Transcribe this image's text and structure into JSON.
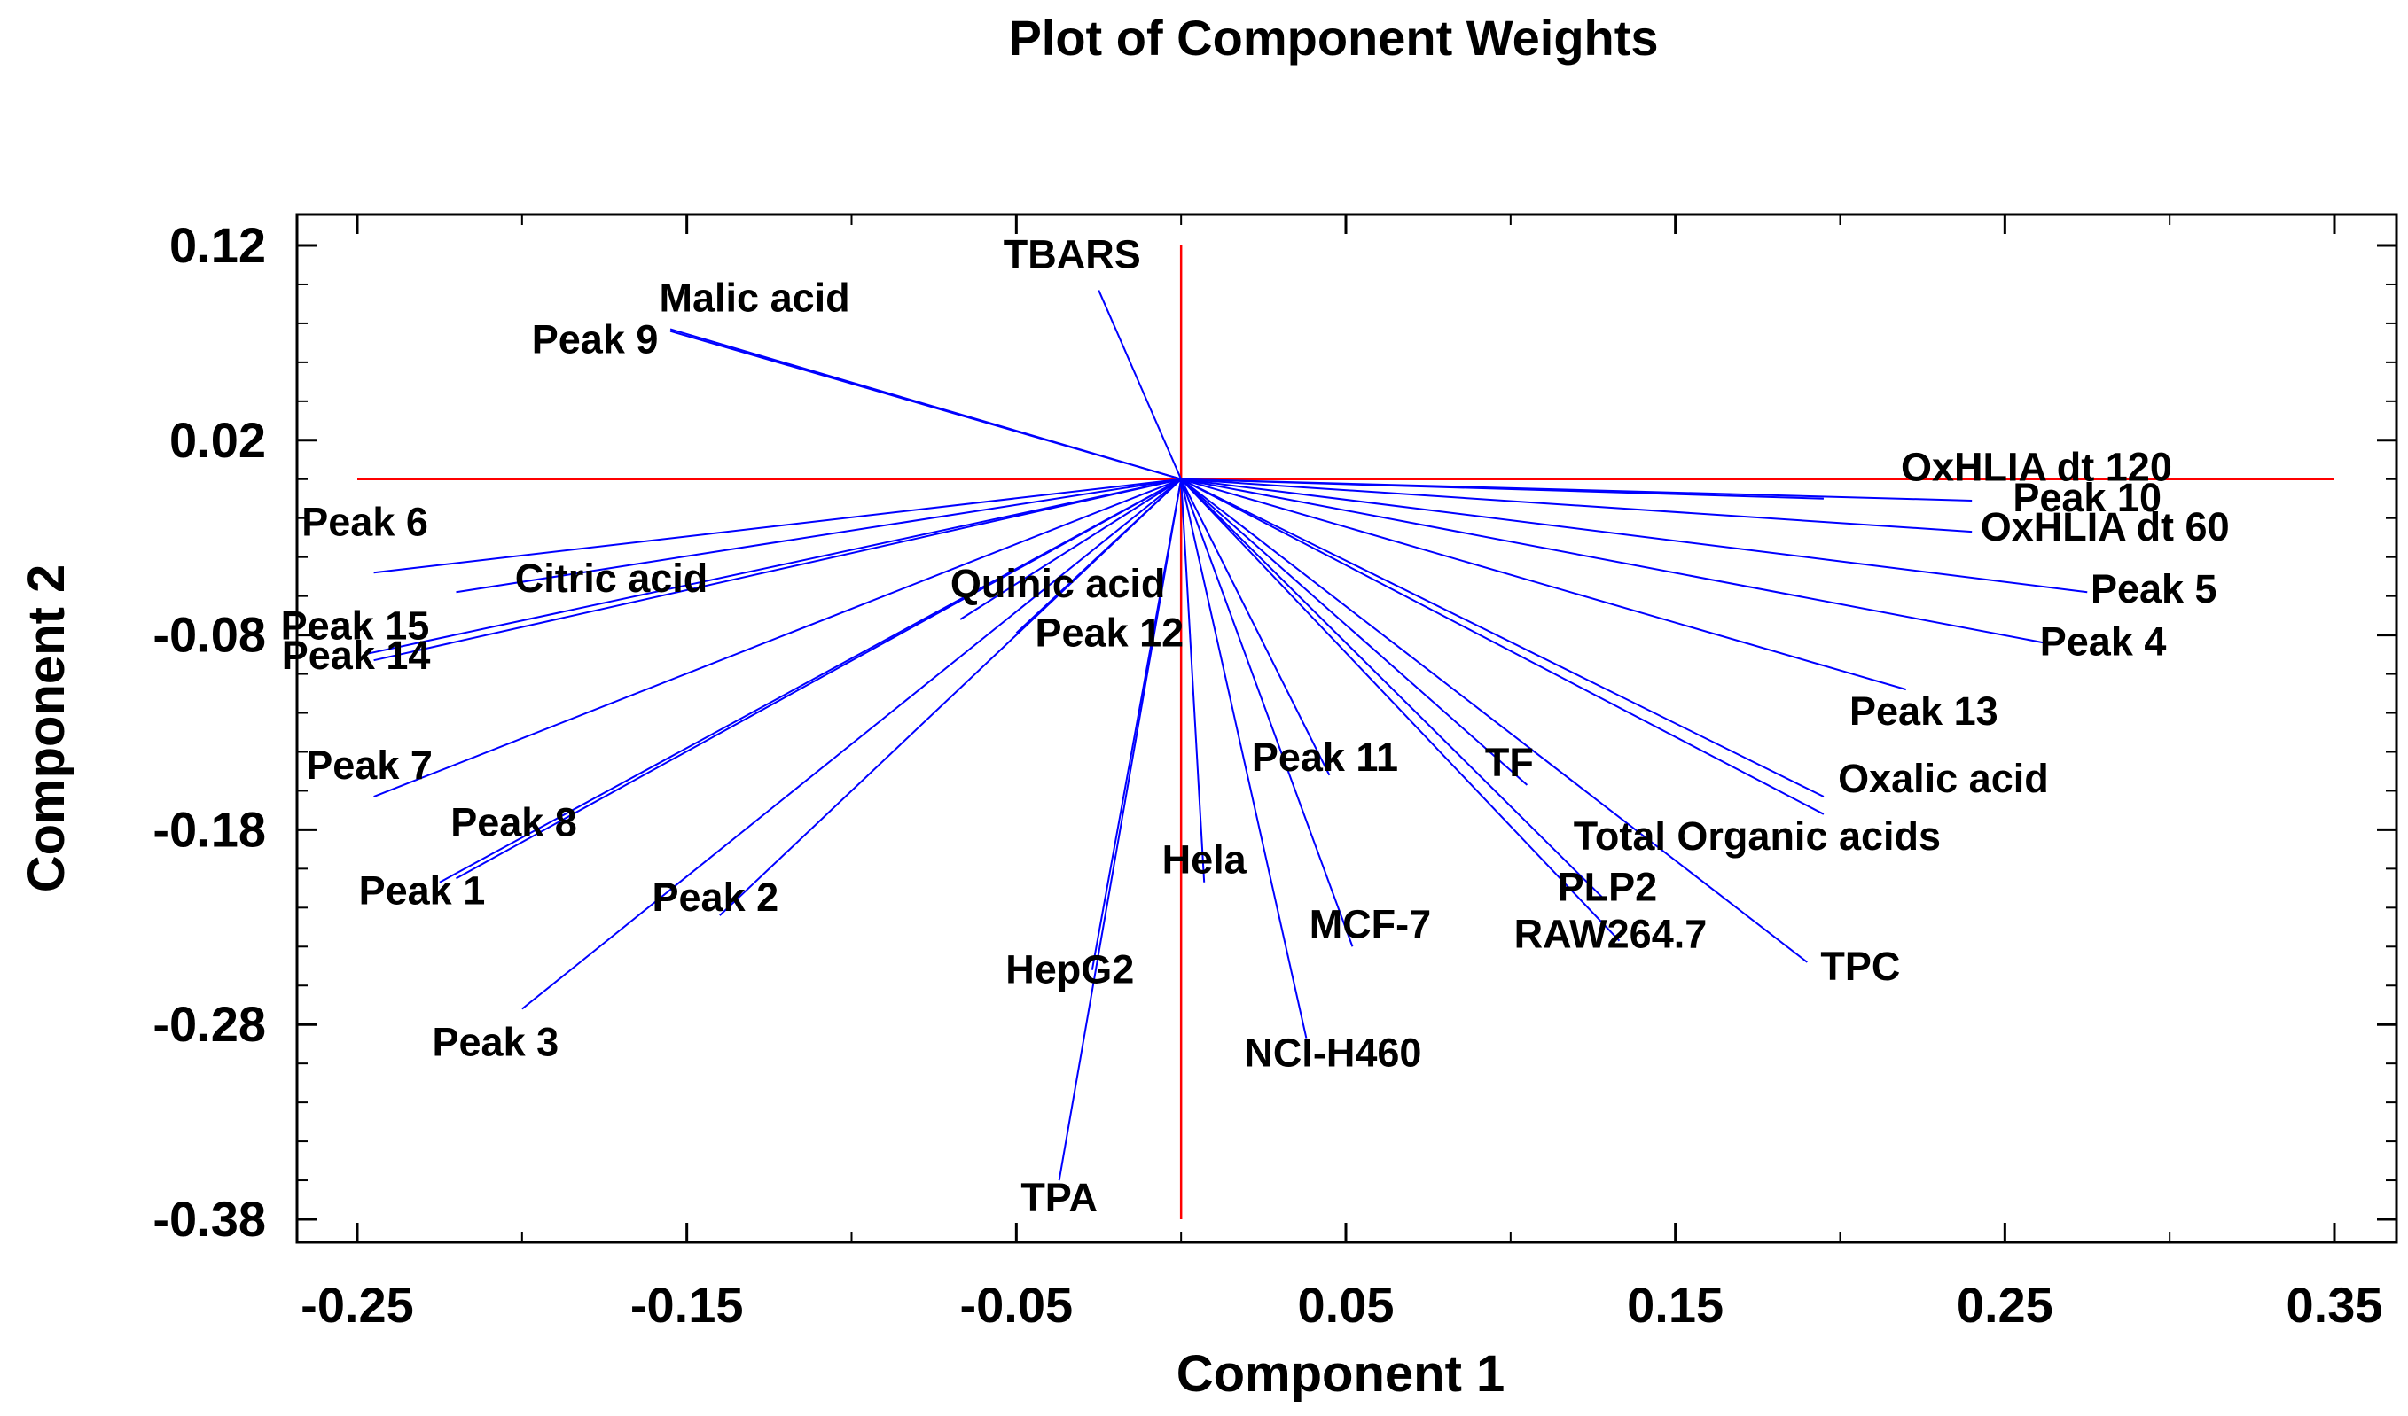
{
  "chart_data": {
    "type": "scatter",
    "style": "biplot-vectors",
    "title": "Plot of Component Weights",
    "xlabel": "Component 1",
    "ylabel": "Component 2",
    "xlim": [
      -0.25,
      0.35
    ],
    "ylim": [
      -0.38,
      0.12
    ],
    "xticks": [
      "-0.25",
      "-0.15",
      "-0.05",
      "0.05",
      "0.15",
      "0.25",
      "0.35"
    ],
    "yticks": [
      "0.12",
      "0.02",
      "-0.08",
      "-0.18",
      "-0.28",
      "-0.38"
    ],
    "origin": [
      0.0,
      0.0
    ],
    "colors": {
      "vectors": "#0000ff",
      "reference_lines": "#ff0000",
      "frame": "#000000",
      "text": "#000000"
    },
    "points": [
      {
        "label": "TBARS",
        "x": -0.025,
        "y": 0.097
      },
      {
        "label": "Malic acid",
        "x": -0.155,
        "y": 0.077
      },
      {
        "label": "Peak 9",
        "x": -0.155,
        "y": 0.076
      },
      {
        "label": "OxHLIA dt 120",
        "x": 0.195,
        "y": -0.01
      },
      {
        "label": "Peak 10",
        "x": 0.24,
        "y": -0.011
      },
      {
        "label": "OxHLIA dt 60",
        "x": 0.24,
        "y": -0.027
      },
      {
        "label": "Peak 5",
        "x": 0.275,
        "y": -0.058
      },
      {
        "label": "Peak 4",
        "x": 0.265,
        "y": -0.085
      },
      {
        "label": "Peak 13",
        "x": 0.22,
        "y": -0.108
      },
      {
        "label": "Oxalic acid",
        "x": 0.195,
        "y": -0.163
      },
      {
        "label": "Total Organic acids",
        "x": 0.195,
        "y": -0.172
      },
      {
        "label": "TF",
        "x": 0.105,
        "y": -0.157
      },
      {
        "label": "TPC",
        "x": 0.19,
        "y": -0.248
      },
      {
        "label": "PLP2",
        "x": 0.128,
        "y": -0.215
      },
      {
        "label": "RAW264.7",
        "x": 0.133,
        "y": -0.237
      },
      {
        "label": "Peak 11",
        "x": 0.045,
        "y": -0.152
      },
      {
        "label": "MCF-7",
        "x": 0.052,
        "y": -0.24
      },
      {
        "label": "NCI-H460",
        "x": 0.038,
        "y": -0.287
      },
      {
        "label": "Hela",
        "x": 0.007,
        "y": -0.207
      },
      {
        "label": "HepG2",
        "x": -0.027,
        "y": -0.252
      },
      {
        "label": "TPA",
        "x": -0.037,
        "y": -0.36
      },
      {
        "label": "Quinic acid",
        "x": -0.067,
        "y": -0.072
      },
      {
        "label": "Peak 12",
        "x": -0.05,
        "y": -0.079
      },
      {
        "label": "Peak 6",
        "x": -0.245,
        "y": -0.048
      },
      {
        "label": "Citric acid",
        "x": -0.22,
        "y": -0.058
      },
      {
        "label": "Peak 15",
        "x": -0.248,
        "y": -0.09
      },
      {
        "label": "Peak 14",
        "x": -0.245,
        "y": -0.093
      },
      {
        "label": "Peak 7",
        "x": -0.245,
        "y": -0.163
      },
      {
        "label": "Peak 8",
        "x": -0.22,
        "y": -0.205
      },
      {
        "label": "Peak 1",
        "x": -0.225,
        "y": -0.207
      },
      {
        "label": "Peak 2",
        "x": -0.14,
        "y": -0.224
      },
      {
        "label": "Peak 3",
        "x": -0.2,
        "y": -0.272
      }
    ]
  }
}
